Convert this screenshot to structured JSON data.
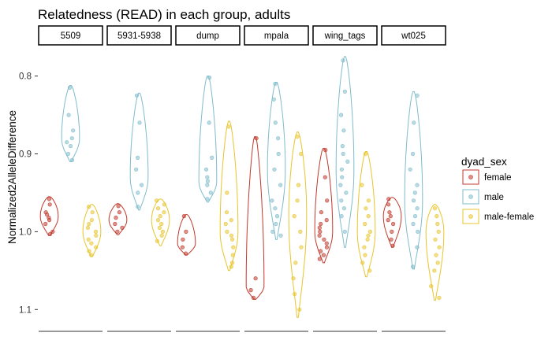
{
  "chart_data": {
    "type": "violin",
    "title": "Relatedness (READ) in each group, adults",
    "ylabel": "Normalized2AlleleDifference",
    "xlabel": "",
    "y_reversed": true,
    "ylim": [
      0.765,
      1.125
    ],
    "y_ticks": [
      0.8,
      0.9,
      1.0,
      1.1
    ],
    "y_tick_labels": [
      "0.8",
      "0.9",
      "1.0",
      "1.1"
    ],
    "grid": false,
    "legend_title": "dyad_sex",
    "legend_position": "right",
    "series": [
      {
        "name": "female",
        "color": "#c0392b"
      },
      {
        "name": "male",
        "color": "#7fbccc"
      },
      {
        "name": "male-female",
        "color": "#e8c42c"
      }
    ],
    "facets": [
      {
        "label": "5509",
        "groups": [
          {
            "series": "female",
            "min": 0.955,
            "max": 1.005,
            "mode": 0.98,
            "points": [
              0.958,
              0.965,
              0.975,
              0.978,
              0.982,
              0.985,
              0.99,
              1.0,
              1.003
            ]
          },
          {
            "series": "male",
            "min": 0.812,
            "max": 0.91,
            "mode": 0.88,
            "points": [
              0.815,
              0.85,
              0.87,
              0.88,
              0.885,
              0.89,
              0.9,
              0.908
            ]
          },
          {
            "series": "male-female",
            "min": 0.965,
            "max": 1.032,
            "mode": 1.0,
            "points": [
              0.968,
              0.975,
              0.985,
              0.99,
              0.995,
              1.0,
              1.005,
              1.01,
              1.015,
              1.02,
              1.025,
              1.03
            ]
          }
        ]
      },
      {
        "label": "5931-5938",
        "groups": [
          {
            "series": "female",
            "min": 0.964,
            "max": 1.004,
            "mode": 0.985,
            "points": [
              0.967,
              0.975,
              0.982,
              0.99,
              0.995,
              1.0
            ]
          },
          {
            "series": "male",
            "min": 0.822,
            "max": 0.972,
            "mode": 0.93,
            "points": [
              0.825,
              0.86,
              0.905,
              0.92,
              0.94,
              0.95,
              0.968
            ]
          },
          {
            "series": "male-female",
            "min": 0.958,
            "max": 1.018,
            "mode": 0.985,
            "points": [
              0.96,
              0.965,
              0.97,
              0.975,
              0.98,
              0.985,
              0.99,
              0.995,
              1.0,
              1.005,
              1.012
            ]
          }
        ]
      },
      {
        "label": "dump",
        "groups": [
          {
            "series": "female",
            "min": 0.978,
            "max": 1.03,
            "mode": 1.015,
            "points": [
              0.98,
              1.0,
              1.01,
              1.02,
              1.028
            ]
          },
          {
            "series": "male",
            "min": 0.8,
            "max": 0.962,
            "mode": 0.935,
            "points": [
              0.802,
              0.86,
              0.905,
              0.92,
              0.93,
              0.935,
              0.94,
              0.95,
              0.958
            ]
          },
          {
            "series": "male-female",
            "min": 0.858,
            "max": 1.05,
            "mode": 1.0,
            "points": [
              0.865,
              0.95,
              0.975,
              0.985,
              0.99,
              1.0,
              1.005,
              1.01,
              1.02,
              1.03,
              1.04,
              1.045
            ]
          }
        ]
      },
      {
        "label": "mpala",
        "groups": [
          {
            "series": "female",
            "min": 0.878,
            "max": 1.087,
            "mode": 1.07,
            "points": [
              0.88,
              1.06,
              1.075,
              1.085
            ]
          },
          {
            "series": "male",
            "min": 0.808,
            "max": 1.01,
            "mode": 0.92,
            "points": [
              0.81,
              0.83,
              0.86,
              0.88,
              0.9,
              0.92,
              0.94,
              0.96,
              0.97,
              0.98,
              0.99,
              1.0,
              1.005
            ]
          },
          {
            "series": "male-female",
            "min": 0.872,
            "max": 1.11,
            "mode": 0.98,
            "points": [
              0.878,
              0.9,
              0.94,
              0.96,
              0.98,
              1.0,
              1.02,
              1.04,
              1.06,
              1.08,
              1.1
            ]
          }
        ]
      },
      {
        "label": "wing_tags",
        "groups": [
          {
            "series": "female",
            "min": 0.893,
            "max": 1.04,
            "mode": 1.0,
            "points": [
              0.895,
              0.93,
              0.96,
              0.975,
              0.985,
              0.99,
              0.995,
              1.0,
              1.005,
              1.01,
              1.015,
              1.02,
              1.025,
              1.03,
              1.035
            ]
          },
          {
            "series": "male",
            "min": 0.775,
            "max": 1.02,
            "mode": 0.92,
            "points": [
              0.78,
              0.82,
              0.85,
              0.87,
              0.89,
              0.9,
              0.91,
              0.92,
              0.93,
              0.94,
              0.95,
              0.96,
              0.97,
              0.98,
              1.0
            ]
          },
          {
            "series": "male-female",
            "min": 0.897,
            "max": 1.058,
            "mode": 1.0,
            "points": [
              0.9,
              0.94,
              0.96,
              0.97,
              0.98,
              0.99,
              1.0,
              1.005,
              1.01,
              1.02,
              1.03,
              1.04,
              1.05
            ]
          }
        ]
      },
      {
        "label": "wt025",
        "groups": [
          {
            "series": "female",
            "min": 0.956,
            "max": 1.02,
            "mode": 0.98,
            "points": [
              0.958,
              0.965,
              0.975,
              0.98,
              0.985,
              0.99,
              1.0,
              1.01,
              1.018
            ]
          },
          {
            "series": "male",
            "min": 0.82,
            "max": 1.048,
            "mode": 0.96,
            "points": [
              0.825,
              0.86,
              0.9,
              0.92,
              0.94,
              0.95,
              0.96,
              0.97,
              0.98,
              0.99,
              1.0,
              1.02,
              1.045
            ]
          },
          {
            "series": "male-female",
            "min": 0.965,
            "max": 1.088,
            "mode": 1.0,
            "points": [
              0.97,
              0.98,
              0.99,
              1.0,
              1.01,
              1.02,
              1.03,
              1.04,
              1.05,
              1.07,
              1.085
            ]
          }
        ]
      }
    ]
  }
}
